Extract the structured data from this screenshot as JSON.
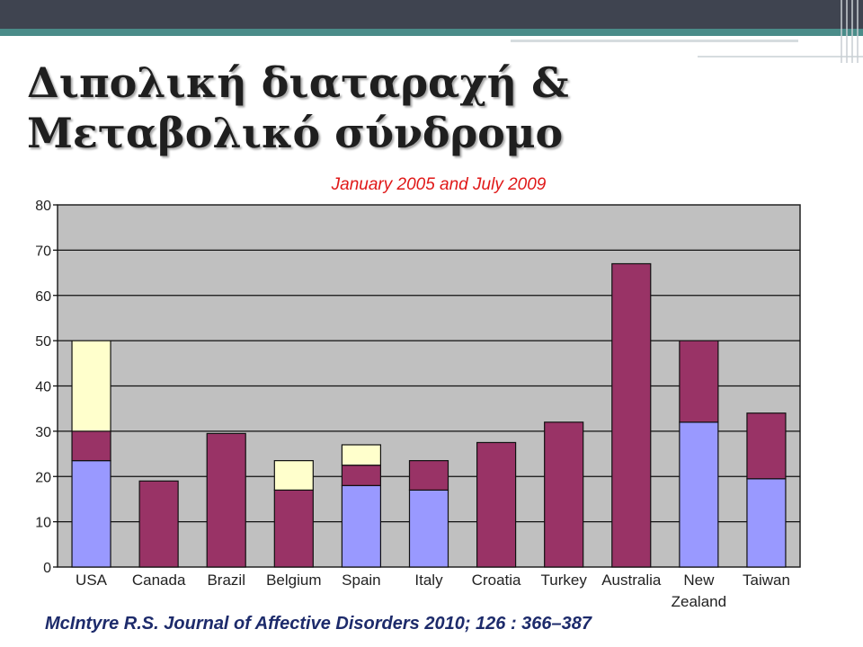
{
  "slide": {
    "title_line1": "Διπολική διαταραχή &",
    "title_line2": "Μεταβολικό σύνδρομο",
    "subtitle": "January 2005 and July 2009",
    "citation": "McIntyre R.S. Journal of Affective Disorders 2010; 126 : 366–387"
  },
  "colors": {
    "topbar": "#3f4450",
    "stripe": "#4a8c89",
    "plot_bg": "#c0c0c0",
    "maroon": "#993366",
    "blue": "#9999ff",
    "yellow": "#ffffcc",
    "subtitle": "#e01818",
    "citation": "#1d2b6b"
  },
  "chart_data": {
    "type": "bar",
    "stacked": true,
    "categories": [
      "USA",
      "Canada",
      "Brazil",
      "Belgium",
      "Spain",
      "Italy",
      "Croatia",
      "Turkey",
      "Australia",
      "New Zealand",
      "Taiwan"
    ],
    "category_labels": [
      [
        "USA"
      ],
      [
        "Canada"
      ],
      [
        "Brazil"
      ],
      [
        "Belgium"
      ],
      [
        "Spain"
      ],
      [
        "Italy"
      ],
      [
        "Croatia"
      ],
      [
        "Turkey"
      ],
      [
        "Australia"
      ],
      [
        "New",
        "Zealand"
      ],
      [
        "Taiwan"
      ]
    ],
    "series": [
      {
        "color": "blue",
        "values": [
          23.5,
          0,
          0,
          0,
          18,
          17,
          0,
          0,
          0,
          32,
          19.5
        ]
      },
      {
        "color": "maroon",
        "values": [
          6.5,
          19,
          29.5,
          17,
          4.5,
          6.5,
          27.5,
          32,
          67,
          18,
          14.5
        ]
      },
      {
        "color": "yellow",
        "values": [
          20,
          0,
          0,
          6.5,
          4.5,
          0,
          0,
          0,
          0,
          0,
          0
        ]
      }
    ],
    "ylim": [
      0,
      80
    ],
    "yticks": [
      0,
      10,
      20,
      30,
      40,
      50,
      60,
      70,
      80
    ],
    "grid": true,
    "legend": "none"
  }
}
